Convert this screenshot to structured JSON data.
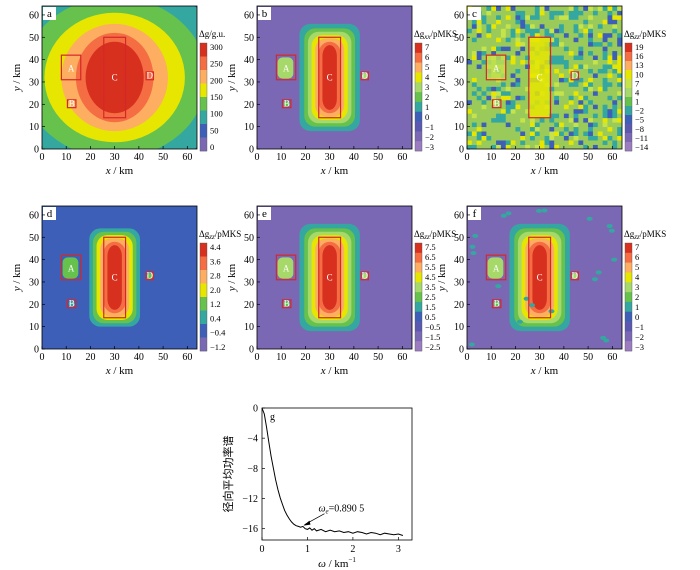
{
  "figure": {
    "panels": [
      {
        "letter": "a",
        "colorbar": {
          "title_main": "Δg/g.u.",
          "title_sub": "",
          "ticks": [
            "300",
            "250",
            "200",
            "150",
            "100",
            "50",
            "0"
          ],
          "colors": [
            "#d7301f",
            "#f46d43",
            "#fdae61",
            "#e6e600",
            "#66c24d",
            "#34a7a0",
            "#3d5fb8",
            "#7b68b5"
          ]
        },
        "style": "broad"
      },
      {
        "letter": "b",
        "colorbar": {
          "title_main": "Δg",
          "title_sub": "xx",
          "title_unit": "/pMKS",
          "ticks": [
            "7",
            "6",
            "5",
            "4",
            "3",
            "2",
            "1",
            "0",
            "−1",
            "−2",
            "−3"
          ],
          "colors": [
            "#d7301f",
            "#f46d43",
            "#fdae61",
            "#e6e600",
            "#a6d96a",
            "#66c24d",
            "#34a7a0",
            "#3d5fb8",
            "#5a58b0",
            "#7b68b5",
            "#9b7cc0"
          ]
        },
        "style": "sharp"
      },
      {
        "letter": "c",
        "colorbar": {
          "title_main": "Δg",
          "title_sub": "zz",
          "title_unit": "/pMKS",
          "ticks": [
            "19",
            "16",
            "13",
            "10",
            "7",
            "4",
            "1",
            "−2",
            "−5",
            "−8",
            "−11",
            "−14"
          ],
          "colors": [
            "#d7301f",
            "#f46d43",
            "#fdae61",
            "#e6e600",
            "#c6e34a",
            "#a6d96a",
            "#66c24d",
            "#34a7a0",
            "#3d5fb8",
            "#5a58b0",
            "#7b68b5",
            "#9b7cc0"
          ]
        },
        "style": "noisy"
      },
      {
        "letter": "d",
        "colorbar": {
          "title_main": "Δg",
          "title_sub": "zz",
          "title_unit": "/pMKS",
          "ticks": [
            "4.4",
            "3.6",
            "2.8",
            "2.0",
            "1.2",
            "0.4",
            "−0.4",
            "−1.2"
          ],
          "colors": [
            "#d7301f",
            "#f46d43",
            "#fdae61",
            "#e6e600",
            "#66c24d",
            "#34a7a0",
            "#3d5fb8",
            "#7b68b5"
          ]
        },
        "style": "sharp"
      },
      {
        "letter": "e",
        "colorbar": {
          "title_main": "Δg",
          "title_sub": "zz",
          "title_unit": "/pMKS",
          "ticks": [
            "7.5",
            "6.5",
            "5.5",
            "4.5",
            "3.5",
            "2.5",
            "1.5",
            "0.5",
            "−0.5",
            "−1.5",
            "−2.5"
          ],
          "colors": [
            "#d7301f",
            "#f46d43",
            "#fdae61",
            "#e6e600",
            "#a6d96a",
            "#66c24d",
            "#34a7a0",
            "#3d5fb8",
            "#5a58b0",
            "#7b68b5",
            "#9b7cc0"
          ]
        },
        "style": "sharp"
      },
      {
        "letter": "f",
        "colorbar": {
          "title_main": "Δg",
          "title_sub": "zz",
          "title_unit": "/pMKS",
          "ticks": [
            "7",
            "6",
            "5",
            "4",
            "3",
            "2",
            "1",
            "0",
            "−1",
            "−2",
            "−3"
          ],
          "colors": [
            "#d7301f",
            "#f46d43",
            "#fdae61",
            "#e6e600",
            "#a6d96a",
            "#66c24d",
            "#34a7a0",
            "#3d5fb8",
            "#5a58b0",
            "#7b68b5",
            "#9b7cc0"
          ]
        },
        "style": "sharp_noise"
      }
    ],
    "map_axes": {
      "xlabel_var": "x",
      "xlabel_unit": " / km",
      "ylabel_var": "y",
      "ylabel_unit": " / km",
      "xticks": [
        "0",
        "10",
        "20",
        "30",
        "40",
        "50",
        "60"
      ],
      "yticks": [
        "0",
        "10",
        "20",
        "30",
        "40",
        "50",
        "60"
      ],
      "range": [
        0,
        64
      ]
    },
    "body_labels": [
      "A",
      "B",
      "C",
      "D"
    ]
  },
  "chart_data": {
    "type": "line",
    "panel_letter": "g",
    "xlabel_var": "ω",
    "xlabel_unit": " / km",
    "xlabel_exp": "−1",
    "ylabel": "径向平均功率谱",
    "xticks": [
      "0",
      "1",
      "2",
      "3"
    ],
    "yticks": [
      "0",
      "−4",
      "−8",
      "−12",
      "−16"
    ],
    "xlim": [
      0,
      3.3
    ],
    "ylim": [
      -17.5,
      0
    ],
    "annotation": {
      "var": "ω",
      "sub": "e",
      "text": "=0.890 5",
      "x": 0.8905,
      "y": -15.6
    },
    "x": [
      0,
      0.05,
      0.1,
      0.15,
      0.2,
      0.25,
      0.3,
      0.35,
      0.4,
      0.45,
      0.5,
      0.55,
      0.6,
      0.65,
      0.7,
      0.75,
      0.8,
      0.85,
      0.9,
      0.95,
      1.0,
      1.05,
      1.1,
      1.15,
      1.2,
      1.3,
      1.4,
      1.5,
      1.6,
      1.7,
      1.8,
      1.9,
      2.0,
      2.1,
      2.2,
      2.3,
      2.4,
      2.5,
      2.6,
      2.7,
      2.8,
      2.9,
      3.0,
      3.1
    ],
    "y": [
      0,
      -0.8,
      -2.5,
      -4.5,
      -6.4,
      -8.0,
      -9.5,
      -10.8,
      -11.9,
      -12.8,
      -13.6,
      -14.2,
      -14.7,
      -15.1,
      -15.4,
      -15.6,
      -15.7,
      -15.8,
      -15.7,
      -16.0,
      -16.1,
      -15.9,
      -16.2,
      -16.0,
      -16.3,
      -16.1,
      -16.4,
      -16.2,
      -16.4,
      -16.3,
      -16.5,
      -16.4,
      -16.6,
      -16.4,
      -16.5,
      -16.7,
      -16.5,
      -16.6,
      -16.8,
      -16.6,
      -16.7,
      -16.8,
      -16.7,
      -16.9
    ]
  }
}
